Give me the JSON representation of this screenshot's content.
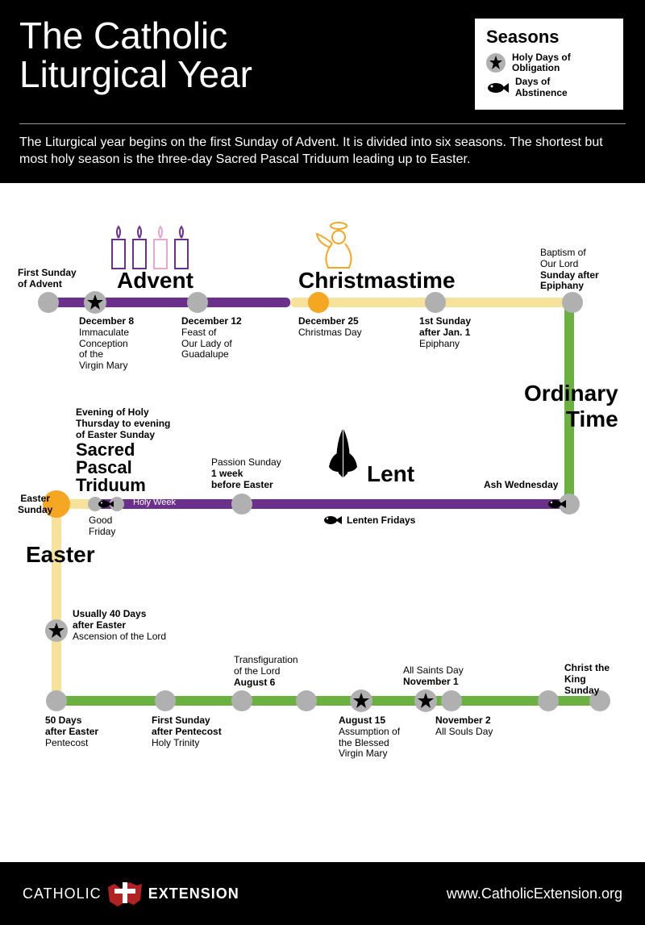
{
  "colors": {
    "purple": "#6b2f8c",
    "yellow": "#f7e29b",
    "green": "#6bb13f",
    "orange": "#f5a623",
    "grey": "#b0b0b0",
    "red": "#b22222"
  },
  "header": {
    "title_line1": "The Catholic",
    "title_line2": "Liturgical Year",
    "legend_title": "Seasons",
    "legend_items": [
      {
        "icon": "star",
        "label1": "Holy Days of",
        "label2": "Obligation"
      },
      {
        "icon": "fish",
        "label1": "Days of",
        "label2": "Abstinence"
      }
    ],
    "intro": "The Liturgical year begins on the first Sunday of Advent. It is divided into six seasons. The shortest but most holy season is the three-day Sacred Pascal Triduum leading up to Easter."
  },
  "seasons": {
    "advent": "Advent",
    "christmas": "Christmastime",
    "ordinary": "Ordinary\nTime",
    "lent": "Lent",
    "triduum_sub": "Evening of Holy\nThursday to evening\nof Easter Sunday",
    "triduum": "Sacred\nPascal\nTriduum",
    "easter": "Easter",
    "holy_week": "Holy Week"
  },
  "events": [
    {
      "key": "first_advent",
      "lines": [
        "First Sunday",
        "of Advent"
      ],
      "bold_idx": [
        0,
        1
      ]
    },
    {
      "key": "dec8",
      "lines": [
        "December 8",
        "Immaculate",
        "Conception",
        "of the",
        "Virgin Mary"
      ],
      "bold_idx": [
        0
      ]
    },
    {
      "key": "dec12",
      "lines": [
        "December 12",
        "Feast of",
        "Our Lady of",
        "Guadalupe"
      ],
      "bold_idx": [
        0
      ]
    },
    {
      "key": "dec25",
      "lines": [
        "December 25",
        "Christmas Day"
      ],
      "bold_idx": [
        0
      ]
    },
    {
      "key": "epiphany",
      "lines": [
        "1st Sunday",
        "after Jan. 1",
        "Epiphany"
      ],
      "bold_idx": [
        0,
        1
      ]
    },
    {
      "key": "baptism",
      "lines": [
        "Baptism of",
        "Our Lord",
        "Sunday after",
        "Epiphany"
      ],
      "bold_idx": [
        2,
        3
      ]
    },
    {
      "key": "ash",
      "lines": [
        "Ash Wednesday"
      ],
      "bold_idx": [
        0
      ]
    },
    {
      "key": "lenten_fri",
      "lines": [
        "Lenten Fridays"
      ],
      "bold_idx": [
        0
      ]
    },
    {
      "key": "passion",
      "lines": [
        "Passion Sunday",
        "1 week",
        "before Easter"
      ],
      "bold_idx": [
        1,
        2
      ]
    },
    {
      "key": "good_fri",
      "lines": [
        "Good",
        "Friday"
      ],
      "bold_idx": []
    },
    {
      "key": "easter_sun",
      "lines": [
        "Easter",
        "Sunday"
      ],
      "bold_idx": [
        0,
        1
      ]
    },
    {
      "key": "ascension",
      "lines": [
        "Usually 40 Days",
        "after Easter",
        "Ascension of the Lord"
      ],
      "bold_idx": [
        0,
        1
      ]
    },
    {
      "key": "pentecost",
      "lines": [
        "50 Days",
        "after Easter",
        "Pentecost"
      ],
      "bold_idx": [
        0,
        1
      ]
    },
    {
      "key": "trinity",
      "lines": [
        "First Sunday",
        "after Pentecost",
        "Holy Trinity"
      ],
      "bold_idx": [
        0,
        1
      ]
    },
    {
      "key": "transfig",
      "lines": [
        "Transfiguration",
        "of the Lord",
        "August 6"
      ],
      "bold_idx": [
        2
      ]
    },
    {
      "key": "aug15",
      "lines": [
        "August 15",
        "Assumption of",
        "the Blessed",
        "Virgin Mary"
      ],
      "bold_idx": [
        0
      ]
    },
    {
      "key": "nov1",
      "lines": [
        "All Saints Day",
        "November 1"
      ],
      "bold_idx": [
        1
      ]
    },
    {
      "key": "nov2",
      "lines": [
        "November 2",
        "All Souls Day"
      ],
      "bold_idx": [
        0
      ]
    },
    {
      "key": "christ_king",
      "lines": [
        "Christ the",
        "King",
        "Sunday"
      ],
      "bold_idx": [
        0,
        1,
        2
      ]
    }
  ],
  "footer": {
    "logo_thin": "CATHOLIC",
    "logo_bold": "EXTENSION",
    "url": "www.CatholicExtension.org"
  }
}
